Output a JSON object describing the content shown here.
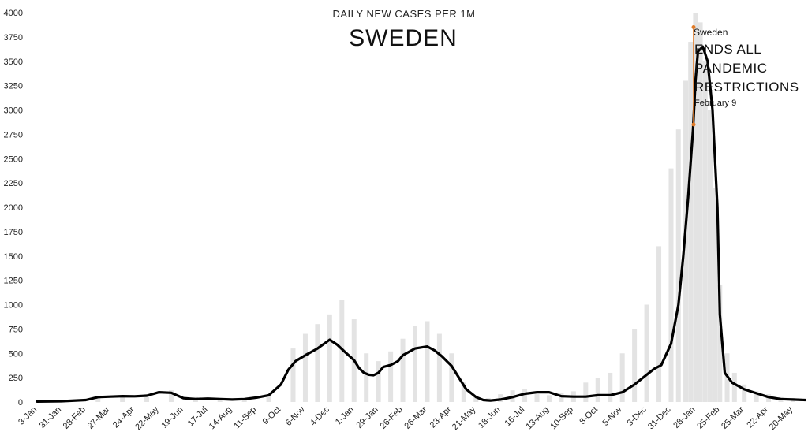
{
  "chart_data": {
    "type": "line",
    "subtitle": "DAILY NEW CASES PER 1M",
    "title": "SWEDEN",
    "xlabel": "",
    "ylabel": "",
    "ylim": [
      0,
      4000
    ],
    "y_ticks": [
      0,
      250,
      500,
      750,
      1000,
      1250,
      1500,
      1750,
      2000,
      2250,
      2500,
      2750,
      3000,
      3250,
      3500,
      3750,
      4000
    ],
    "x_ticks": [
      "3-Jan",
      "31-Jan",
      "28-Feb",
      "27-Mar",
      "24-Apr",
      "22-May",
      "19-Jun",
      "17-Jul",
      "14-Aug",
      "11-Sep",
      "9-Oct",
      "6-Nov",
      "4-Dec",
      "1-Jan",
      "29-Jan",
      "26-Feb",
      "26-Mar",
      "23-Apr",
      "21-May",
      "18-Jun",
      "16-Jul",
      "13-Aug",
      "10-Sep",
      "8-Oct",
      "5-Nov",
      "3-Dec",
      "31-Dec",
      "28-Jan",
      "25-Feb",
      "25-Mar",
      "22-Apr",
      "20-May"
    ],
    "grid": false,
    "colors": {
      "line": "#000000",
      "bars": "#e3e3e3",
      "annotation": "#e07b28"
    },
    "series": [
      {
        "type": "line",
        "x": [
          0,
          1,
          2,
          2.5,
          3,
          3.5,
          4,
          4.5,
          5,
          5.5,
          6,
          6.5,
          7,
          7.5,
          8,
          8.5,
          9,
          9.5,
          10,
          10.3,
          10.6,
          11,
          11.5,
          12,
          12.3,
          12.6,
          13,
          13.2,
          13.4,
          13.6,
          13.8,
          14,
          14.2,
          14.5,
          14.8,
          15,
          15.5,
          16,
          16.3,
          16.6,
          17,
          17.3,
          17.6,
          18,
          18.3,
          18.6,
          19,
          19.5,
          20,
          20.5,
          21,
          21.5,
          22,
          22.5,
          23,
          23.5,
          24,
          24.5,
          25,
          25.3,
          25.6,
          26,
          26.3,
          26.5,
          26.7,
          26.9,
          27,
          27.1,
          27.3,
          27.5,
          27.7,
          27.9,
          28,
          28.2,
          28.5,
          29,
          29.5,
          30,
          30.5,
          31,
          31.5
        ],
        "y": [
          5,
          8,
          20,
          50,
          55,
          60,
          58,
          65,
          100,
          95,
          40,
          30,
          35,
          30,
          25,
          30,
          45,
          70,
          180,
          330,
          420,
          480,
          550,
          640,
          590,
          520,
          430,
          350,
          300,
          280,
          275,
          300,
          360,
          380,
          420,
          480,
          550,
          570,
          530,
          470,
          370,
          250,
          130,
          50,
          20,
          15,
          25,
          50,
          85,
          100,
          100,
          60,
          55,
          55,
          70,
          70,
          100,
          180,
          280,
          340,
          380,
          600,
          1000,
          1500,
          2100,
          2800,
          3300,
          3600,
          3650,
          3500,
          3000,
          2000,
          900,
          300,
          200,
          130,
          90,
          50,
          30,
          25,
          20
        ]
      },
      {
        "type": "bar",
        "x": [
          2.5,
          3.5,
          4.5,
          5.5,
          6.5,
          7.5,
          8.5,
          9.5,
          10.5,
          11,
          11.5,
          12,
          12.5,
          13,
          13.5,
          14,
          14.5,
          15,
          15.5,
          16,
          16.5,
          17,
          17.5,
          18,
          18.5,
          19,
          19.5,
          20,
          20.5,
          21,
          21.5,
          22,
          22.5,
          23,
          23.5,
          24,
          24.5,
          25,
          25.5,
          26,
          26.3,
          26.6,
          26.8,
          27,
          27.2,
          27.4,
          27.6,
          27.8,
          28,
          28.3,
          28.6,
          29,
          29.5,
          30,
          30.5,
          31
        ],
        "y": [
          60,
          70,
          80,
          120,
          50,
          40,
          35,
          60,
          550,
          700,
          800,
          900,
          1050,
          850,
          500,
          420,
          520,
          650,
          780,
          830,
          700,
          500,
          200,
          60,
          40,
          80,
          120,
          130,
          80,
          70,
          90,
          110,
          200,
          250,
          300,
          500,
          750,
          1000,
          1600,
          2400,
          2800,
          3300,
          3700,
          4000,
          3900,
          3500,
          3000,
          2200,
          1200,
          500,
          300,
          180,
          110,
          80,
          50,
          40
        ]
      }
    ],
    "annotation": {
      "line1": "Sweden",
      "line2": "ENDS ALL",
      "line3": "PANDEMIC",
      "line4": "RESTRICTIONS",
      "line5": "February 9",
      "y_top": 3850,
      "y_bottom": 2850
    }
  }
}
